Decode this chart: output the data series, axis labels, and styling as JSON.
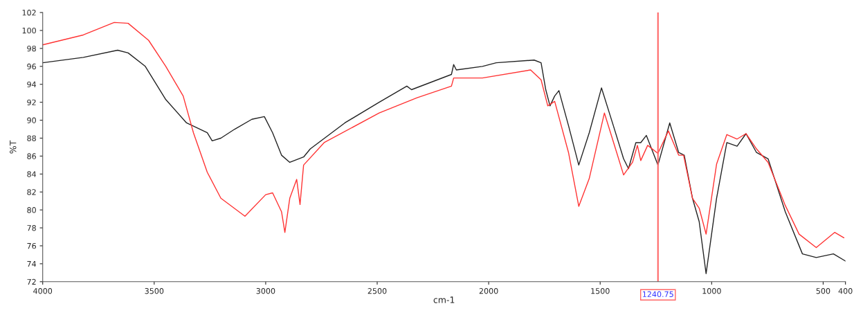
{
  "chart_data": {
    "type": "line",
    "xlabel": "cm-1",
    "ylabel": "%T",
    "xlim": [
      4000,
      400
    ],
    "xticks": [
      4000,
      3500,
      3000,
      2500,
      2000,
      1500,
      1000,
      500,
      400
    ],
    "ylim": [
      72,
      102
    ],
    "yticks": [
      72,
      74,
      76,
      78,
      80,
      82,
      84,
      86,
      88,
      90,
      92,
      94,
      96,
      98,
      100,
      102
    ],
    "grid": false,
    "legend": false,
    "line_style": "solid",
    "marker": "none",
    "ref_lines": [
      {
        "axis": "x",
        "value": 1240.75,
        "label": "1240.75",
        "color": "#ff6666"
      }
    ],
    "series": [
      {
        "color": "#222222",
        "x": [
          4000,
          3818,
          3664,
          3617,
          3540,
          3448,
          3355,
          3262,
          3240,
          3201,
          3139,
          3062,
          3006,
          2969,
          2929,
          2892,
          2830,
          2800,
          2645,
          2491,
          2367,
          2346,
          2167,
          2157,
          2145,
          2028,
          1966,
          1796,
          1765,
          1744,
          1725,
          1704,
          1685,
          1642,
          1596,
          1549,
          1494,
          1441,
          1395,
          1373,
          1340,
          1318,
          1293,
          1241,
          1188,
          1148,
          1123,
          1086,
          1056,
          1025,
          978,
          932,
          886,
          846,
          799,
          747,
          670,
          593,
          531,
          454,
          400
        ],
        "values": [
          96.4,
          97.0,
          97.8,
          97.5,
          96.0,
          92.3,
          89.7,
          88.6,
          87.7,
          88.0,
          89.0,
          90.1,
          90.4,
          88.6,
          86.1,
          85.3,
          85.9,
          86.8,
          89.7,
          92.0,
          93.8,
          93.4,
          95.1,
          96.2,
          95.6,
          96.0,
          96.4,
          96.7,
          96.4,
          93.4,
          91.6,
          92.7,
          93.3,
          89.4,
          85.0,
          88.6,
          93.6,
          89.4,
          85.7,
          84.6,
          87.5,
          87.5,
          88.3,
          85.0,
          89.7,
          86.4,
          86.1,
          81.3,
          78.7,
          72.9,
          81.3,
          87.5,
          87.1,
          88.5,
          86.4,
          85.7,
          79.8,
          75.1,
          74.7,
          75.1,
          74.3
        ]
      },
      {
        "color": "#ff3333",
        "x": [
          4000,
          3818,
          3679,
          3617,
          3525,
          3448,
          3370,
          3324,
          3262,
          3201,
          3093,
          3000,
          2969,
          2929,
          2914,
          2892,
          2861,
          2846,
          2830,
          2738,
          2491,
          2321,
          2167,
          2157,
          2028,
          1812,
          1765,
          1735,
          1704,
          1642,
          1596,
          1549,
          1481,
          1426,
          1395,
          1355,
          1333,
          1318,
          1287,
          1241,
          1194,
          1148,
          1126,
          1086,
          1056,
          1025,
          978,
          932,
          886,
          846,
          799,
          747,
          670,
          608,
          531,
          448,
          407
        ],
        "values": [
          98.4,
          99.5,
          100.9,
          100.8,
          98.9,
          96.0,
          92.7,
          88.6,
          84.2,
          81.3,
          79.3,
          81.7,
          81.9,
          79.8,
          77.5,
          81.3,
          83.4,
          80.6,
          85.0,
          87.5,
          90.8,
          92.5,
          93.8,
          94.7,
          94.7,
          95.6,
          94.5,
          91.6,
          92.1,
          86.4,
          80.4,
          83.5,
          90.8,
          86.4,
          83.9,
          85.3,
          87.2,
          85.5,
          87.2,
          86.3,
          88.8,
          86.1,
          86.1,
          81.3,
          80.2,
          77.3,
          85.1,
          88.4,
          87.9,
          88.5,
          86.8,
          85.3,
          80.5,
          77.3,
          75.8,
          77.5,
          76.9
        ]
      }
    ]
  }
}
